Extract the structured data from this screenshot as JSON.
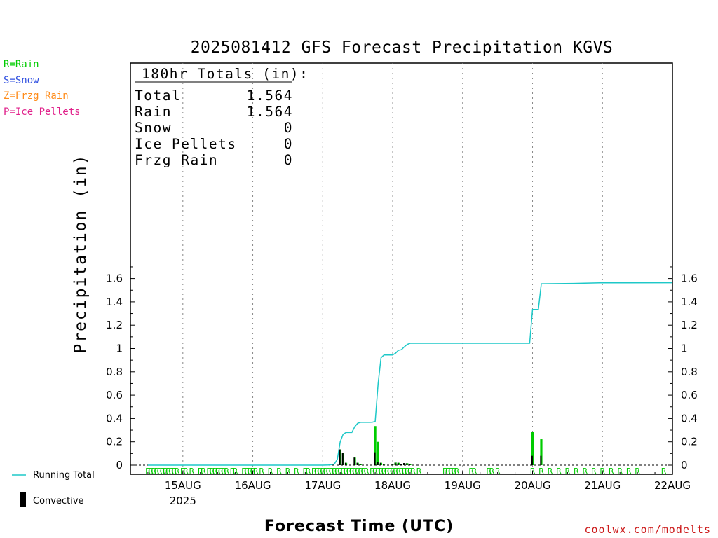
{
  "chart_data": {
    "type": "bar",
    "title": "2025081412 GFS Forecast Precipitation KGVS",
    "ylabel": "Precipitation (in)",
    "xlabel": "Forecast Time (UTC)",
    "ylim": [
      0,
      1.72
    ],
    "y_ticks": [
      0,
      0.2,
      0.4,
      0.6,
      0.8,
      1,
      1.2,
      1.4,
      1.6
    ],
    "y_tick_labels": [
      "0",
      "0.2",
      "0.4",
      "0.6",
      "0.8",
      "1",
      "1.2",
      "1.4",
      "1.6"
    ],
    "x_hours_range": [
      -6,
      180
    ],
    "x_ticks": [
      {
        "hour": 12,
        "label": "15AUG",
        "sub": "2025"
      },
      {
        "hour": 36,
        "label": "16AUG"
      },
      {
        "hour": 60,
        "label": "17AUG"
      },
      {
        "hour": 84,
        "label": "18AUG"
      },
      {
        "hour": 108,
        "label": "19AUG"
      },
      {
        "hour": 132,
        "label": "20AUG"
      },
      {
        "hour": 156,
        "label": "21AUG"
      },
      {
        "hour": 180,
        "label": "22AUG"
      }
    ],
    "grid": "vertical dotted at day boundaries",
    "series": [
      {
        "name": "Running Total",
        "color": "#1ec8c8",
        "points": [
          [
            0,
            0
          ],
          [
            60,
            0
          ],
          [
            62,
            0.002
          ],
          [
            63,
            0.005
          ],
          [
            64,
            0.01
          ],
          [
            65,
            0.05
          ],
          [
            66,
            0.2
          ],
          [
            67,
            0.265
          ],
          [
            68,
            0.28
          ],
          [
            70,
            0.28
          ],
          [
            71,
            0.33
          ],
          [
            72,
            0.36
          ],
          [
            73,
            0.367
          ],
          [
            76,
            0.367
          ],
          [
            77,
            0.368
          ],
          [
            78,
            0.375
          ],
          [
            79,
            0.7
          ],
          [
            80,
            0.92
          ],
          [
            81,
            0.945
          ],
          [
            82,
            0.945
          ],
          [
            84,
            0.945
          ],
          [
            85,
            0.96
          ],
          [
            86,
            0.985
          ],
          [
            87,
            0.99
          ],
          [
            88,
            1.015
          ],
          [
            89,
            1.035
          ],
          [
            90,
            1.045
          ],
          [
            131,
            1.045
          ],
          [
            132,
            1.335
          ],
          [
            134,
            1.335
          ],
          [
            135,
            1.555
          ],
          [
            146,
            1.558
          ],
          [
            155,
            1.563
          ],
          [
            180,
            1.564
          ]
        ]
      },
      {
        "name": "Rain",
        "color": "#00cc00",
        "bars": [
          [
            66,
            0.135
          ],
          [
            67,
            0.108
          ],
          [
            68,
            0.02
          ],
          [
            71,
            0.065
          ],
          [
            72,
            0.02
          ],
          [
            73,
            0.008
          ],
          [
            78,
            0.335
          ],
          [
            79,
            0.2
          ],
          [
            80,
            0.02
          ],
          [
            81,
            0.005
          ],
          [
            84,
            0.005
          ],
          [
            85,
            0.022
          ],
          [
            86,
            0.02
          ],
          [
            87,
            0.008
          ],
          [
            88,
            0.018
          ],
          [
            89,
            0.016
          ],
          [
            90,
            0.01
          ],
          [
            132,
            0.287
          ],
          [
            135,
            0.222
          ]
        ]
      },
      {
        "name": "Convective",
        "color": "#000000",
        "bars": [
          [
            66,
            0.135
          ],
          [
            67,
            0.108
          ],
          [
            68,
            0.02
          ],
          [
            71,
            0.065
          ],
          [
            72,
            0.02
          ],
          [
            73,
            0.008
          ],
          [
            78,
            0.11
          ],
          [
            79,
            0.03
          ],
          [
            80,
            0.02
          ],
          [
            81,
            0.005
          ],
          [
            84,
            0.005
          ],
          [
            85,
            0.02
          ],
          [
            86,
            0.02
          ],
          [
            87,
            0.008
          ],
          [
            88,
            0.018
          ],
          [
            89,
            0.016
          ],
          [
            90,
            0.01
          ],
          [
            132,
            0.08
          ],
          [
            135,
            0.08
          ]
        ]
      }
    ],
    "ptype_marks": {
      "symbol": "R",
      "color": "#00cc00",
      "hours": [
        0,
        1,
        2,
        3,
        4,
        5,
        6,
        7,
        8,
        9,
        10,
        12,
        13,
        15,
        18,
        19,
        21,
        22,
        23,
        24,
        25,
        26,
        27,
        29,
        30,
        33,
        34,
        35,
        36,
        37,
        39,
        42,
        45,
        48,
        51,
        54,
        55,
        57,
        58,
        59,
        60,
        61,
        62,
        63,
        64,
        65,
        66,
        67,
        68,
        69,
        70,
        71,
        72,
        73,
        74,
        75,
        77,
        78,
        79,
        80,
        81,
        82,
        83,
        84,
        85,
        86,
        87,
        88,
        89,
        90,
        91,
        93,
        102,
        103,
        104,
        105,
        106,
        111,
        112,
        117,
        118,
        120,
        132,
        135,
        138,
        141,
        144,
        147,
        150,
        153,
        156,
        159,
        162,
        165,
        168,
        177
      ]
    },
    "totals_box": {
      "header": "180hr Totals (in):",
      "rows": [
        {
          "label": "Total",
          "value": "1.564"
        },
        {
          "label": "Rain",
          "value": "1.564"
        },
        {
          "label": "Snow",
          "value": "0"
        },
        {
          "label": "Ice Pellets",
          "value": "0"
        },
        {
          "label": "Frzg Rain",
          "value": "0"
        }
      ]
    }
  },
  "ptype_legend": [
    {
      "text": "R=Rain",
      "color": "#00cc00"
    },
    {
      "text": "S=Snow",
      "color": "#3050e0"
    },
    {
      "text": "Z=Frzg Rain",
      "color": "#ff8c1a"
    },
    {
      "text": "P=Ice Pellets",
      "color": "#e0208a"
    }
  ],
  "line_legend": {
    "label": "Running Total",
    "color": "#1ec8c8"
  },
  "bar_legend": {
    "label": "Convective",
    "color": "#000000"
  },
  "credit": {
    "text": "coolwx.com/modelts",
    "color": "#cc1a1a"
  }
}
